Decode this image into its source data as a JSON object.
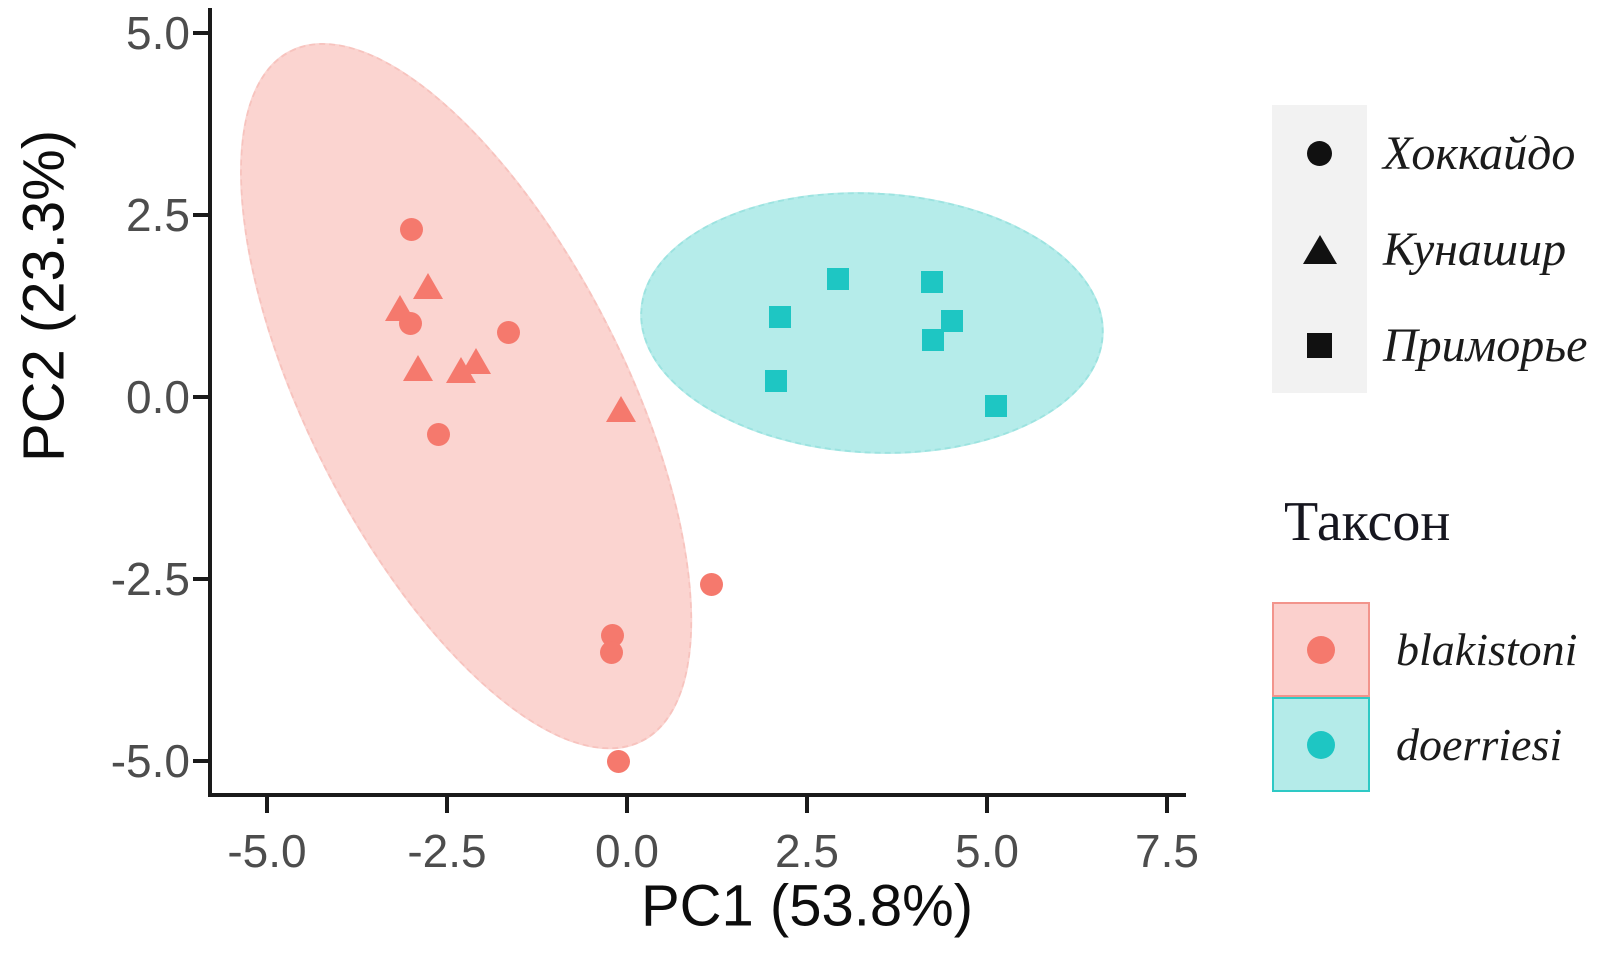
{
  "chart_data": {
    "type": "scatter",
    "title": "",
    "xlabel": "PC1 (53.8%)",
    "ylabel": "PC2 (23.3%)",
    "xlim": [
      -6.2,
      7.8
    ],
    "ylim": [
      -5.5,
      5.4
    ],
    "grid": false,
    "xticks": [
      -5.0,
      -2.5,
      0.0,
      2.5,
      5.0,
      7.5
    ],
    "yticks": [
      5.0,
      2.5,
      0.0,
      -2.5,
      -5.0
    ],
    "xtick_labels": [
      "-5.0",
      "-2.5",
      "0.0",
      "2.5",
      "5.0",
      "7.5"
    ],
    "ytick_labels": [
      "5.0",
      "2.5",
      "0.0",
      "-2.5",
      "-5.0"
    ],
    "series": [
      {
        "id": "blakistoni-hokkaido",
        "taxon": "blakistoni",
        "region": "Хоккайдо",
        "marker": "circle",
        "color": "#f5796d",
        "points": [
          [
            -3.0,
            2.3
          ],
          [
            -3.01,
            1.01
          ],
          [
            -1.65,
            0.88
          ],
          [
            -2.62,
            -0.52
          ],
          [
            1.18,
            -2.57
          ],
          [
            -0.2,
            -3.27
          ],
          [
            -0.21,
            -3.51
          ],
          [
            -0.12,
            -5.0
          ]
        ]
      },
      {
        "id": "blakistoni-kunashir",
        "taxon": "blakistoni",
        "region": "Кунашир",
        "marker": "triangle",
        "color": "#f5796d",
        "points": [
          [
            -2.76,
            1.47
          ],
          [
            -3.15,
            1.17
          ],
          [
            -2.9,
            0.34
          ],
          [
            -2.3,
            0.32
          ],
          [
            -2.1,
            0.44
          ],
          [
            -0.08,
            -0.22
          ]
        ]
      },
      {
        "id": "doerriesi-primorye",
        "taxon": "doerriesi",
        "region": "Приморье",
        "marker": "square",
        "color": "#1ec6c3",
        "points": [
          [
            2.93,
            1.62
          ],
          [
            4.23,
            1.58
          ],
          [
            2.12,
            1.1
          ],
          [
            4.52,
            1.05
          ],
          [
            4.25,
            0.78
          ],
          [
            2.07,
            0.22
          ],
          [
            5.13,
            -0.13
          ]
        ]
      }
    ],
    "ellipses": [
      {
        "taxon": "blakistoni",
        "cx": -2.24,
        "cy": 0.01,
        "width_units": 4.36,
        "height_units": 10.6,
        "rotation_deg": -27,
        "fill": "#fbd4d0",
        "edge": "#f7c3be"
      },
      {
        "taxon": "doerriesi",
        "cx": 3.4,
        "cy": 1.02,
        "width_units": 6.39,
        "height_units": 3.53,
        "rotation_deg": 3,
        "fill": "#b5ecea",
        "edge": "#9ce3e0"
      }
    ],
    "legend_position": "right"
  },
  "legends": {
    "shapes": {
      "items": [
        {
          "label": "Хоккайдо",
          "marker": "circle"
        },
        {
          "label": "Кунашир",
          "marker": "triangle"
        },
        {
          "label": "Приморье",
          "marker": "square"
        }
      ]
    },
    "taxon": {
      "title": "Таксон",
      "items": [
        {
          "label": "blakistoni",
          "box_fill": "#fbd0cd",
          "box_border": "#f2948c",
          "dot_color": "#f5796d"
        },
        {
          "label": "doerriesi",
          "box_fill": "#b4ebe9",
          "box_border": "#2ec9c5",
          "dot_color": "#1ec6c3"
        }
      ]
    }
  },
  "colors": {
    "blakistoni": "#f5796d",
    "doerriesi": "#1ec6c3",
    "blakistoni_ellipse": "#fbd4d0",
    "doerriesi_ellipse": "#b5ecea",
    "axis": "#1a1a1a",
    "tick_text": "#4d4d4d"
  }
}
